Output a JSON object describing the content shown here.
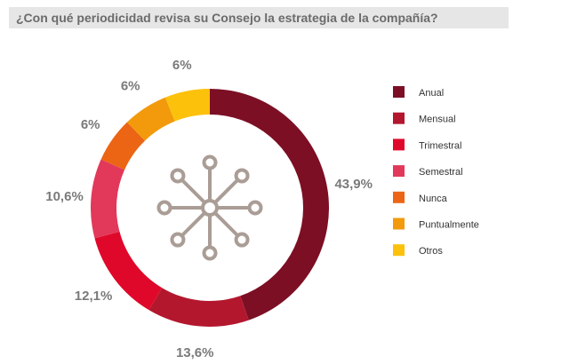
{
  "chart_data": {
    "type": "pie",
    "title": "¿Con qué periodicidad revisa su Consejo la estrategia de la compañía?",
    "categories": [
      "Anual",
      "Mensual",
      "Trimestral",
      "Semestral",
      "Nunca",
      "Puntualmente",
      "Otros"
    ],
    "values": [
      43.9,
      13.6,
      12.1,
      10.6,
      6,
      6,
      6
    ],
    "value_labels": [
      "43,9%",
      "13,6%",
      "12,1%",
      "10,6%",
      "6%",
      "6%",
      "6%"
    ],
    "colors": [
      "#7c0f24",
      "#b3172e",
      "#e0082a",
      "#e2385a",
      "#ec6515",
      "#f29a0c",
      "#fcc10b"
    ],
    "donut": true,
    "legend_position": "right",
    "center_icon": "network-hub-icon"
  }
}
